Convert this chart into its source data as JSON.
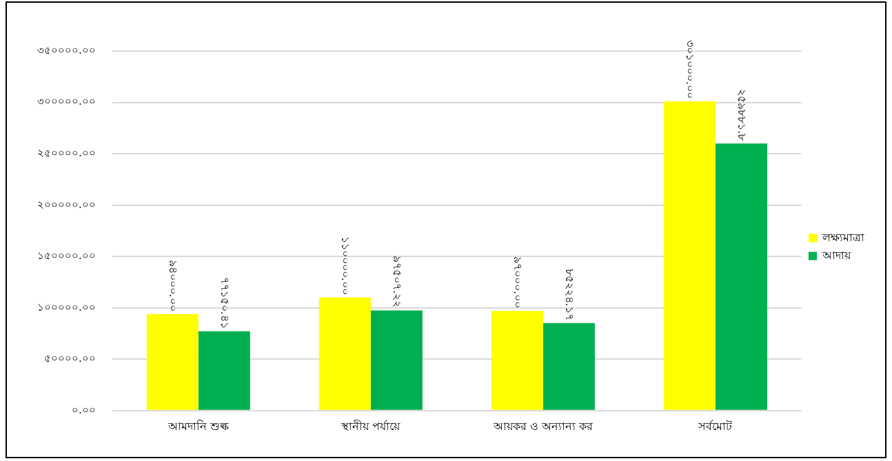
{
  "chart_data": {
    "type": "bar",
    "categories": [
      "আমদানি শুল্ক",
      "স্থানীয় পর্যায়ে",
      "আয়কর ও অন্যান্য কর",
      "সর্বমোট"
    ],
    "series": [
      {
        "name": "লক্ষ্যমাত্রা",
        "color": "#ffff00",
        "values": [
          94000,
          110000,
          97000,
          301000
        ],
        "value_labels": [
          "৯৪০০০.০০",
          "১১০০০০.০০",
          "৯৭০০০.০০",
          "৩০১০০০.০০"
        ]
      },
      {
        "name": "আদায়",
        "color": "#00b050",
        "values": [
          77150.41,
          97507.22,
          85224.17,
          259881.8
        ],
        "value_labels": [
          "৭৭১৫০.৪১",
          "৯৭৫০৭.২২",
          "৮৫২২৪.১৭",
          "২৫৯৮৮১.৮"
        ]
      }
    ],
    "ylim": [
      0,
      350000
    ],
    "yticks": [
      {
        "value": 0,
        "label": "০.০০"
      },
      {
        "value": 50000,
        "label": "৫০০০০.০০"
      },
      {
        "value": 100000,
        "label": "১০০০০০.০০"
      },
      {
        "value": 150000,
        "label": "১৫০০০০.০০"
      },
      {
        "value": 200000,
        "label": "২০০০০০.০০"
      },
      {
        "value": 250000,
        "label": "২৫০০০০.০০"
      },
      {
        "value": 300000,
        "label": "৩০০০০০.০০"
      },
      {
        "value": 350000,
        "label": "৩৫০০০০.০০"
      }
    ],
    "grid": "y",
    "legend": "right"
  }
}
